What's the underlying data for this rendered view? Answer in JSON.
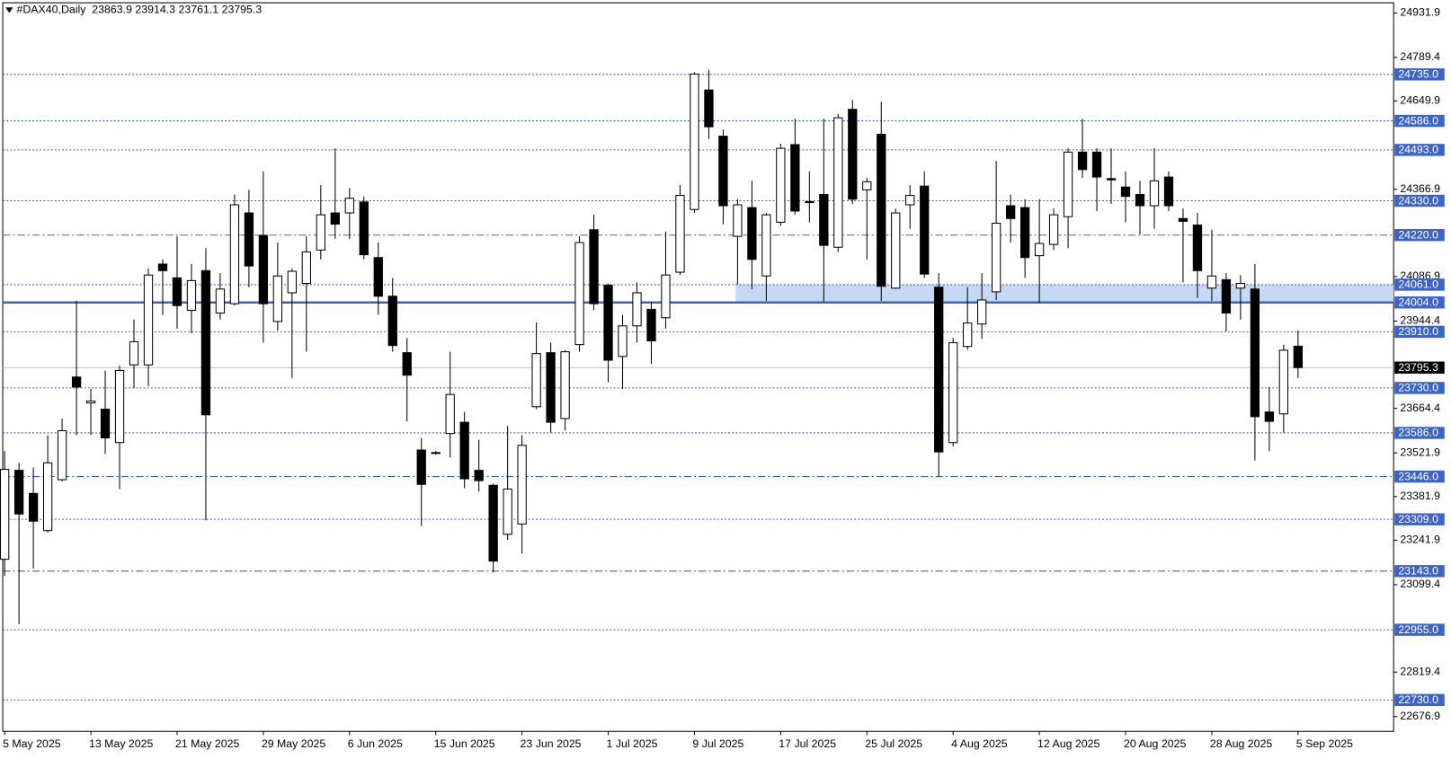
{
  "chart_data": {
    "type": "candlestick",
    "title": "#DAX40,Daily",
    "categories": [
      "5 May 2025",
      null,
      null,
      null,
      null,
      null,
      "13 May 2025",
      null,
      null,
      null,
      null,
      null,
      "21 May 2025",
      null,
      null,
      null,
      null,
      null,
      "29 May 2025",
      null,
      null,
      null,
      null,
      null,
      "6 Jun 2025",
      null,
      null,
      null,
      null,
      null,
      "15 Jun 2025",
      null,
      null,
      null,
      null,
      null,
      "23 Jun 2025",
      null,
      null,
      null,
      null,
      null,
      "1 Jul 2025",
      null,
      null,
      null,
      null,
      null,
      "9 Jul 2025",
      null,
      null,
      null,
      null,
      null,
      "17 Jul 2025",
      null,
      null,
      null,
      null,
      null,
      "25 Jul 2025",
      null,
      null,
      null,
      null,
      null,
      "4 Aug 2025",
      null,
      null,
      null,
      null,
      null,
      "12 Aug 2025",
      null,
      null,
      null,
      null,
      null,
      "20 Aug 2025",
      null,
      null,
      null,
      null,
      null,
      "28 Aug 2025",
      null,
      null,
      null,
      null,
      null,
      "5 Sep 2025"
    ],
    "open": [
      23181,
      23466,
      23392,
      23273,
      23436,
      23765,
      23682,
      23662,
      23555,
      23804,
      23804,
      24127,
      24083,
      23979,
      24106,
      23970,
      24000,
      24291,
      24219,
      23943,
      24035,
      24065,
      24172,
      24291,
      24291,
      24326,
      24148,
      24024,
      23843,
      23531,
      23521,
      23584,
      23620,
      23466,
      23418,
      23261,
      23294,
      23670,
      23843,
      23632,
      23869,
      24237,
      24059,
      23831,
      23929,
      23982,
      23955,
      24101,
      24302,
      24685,
      24537,
      24216,
      24308,
      24089,
      24261,
      24510,
      24325,
      24350,
      24181,
      24623,
      24365,
      24543,
      24050,
      24317,
      24377,
      24053,
      23555,
      23863,
      23935,
      24038,
      24314,
      24308,
      24154,
      24190,
      24279,
      24486,
      24486,
      24401,
      24374,
      24350,
      24314,
      24406,
      24273,
      24252,
      24050,
      24077,
      24050,
      24047,
      23653,
      23647,
      23863.9
    ],
    "high": [
      23528,
      23490,
      23475,
      23579,
      23632,
      24009,
      23727,
      23786,
      23801,
      23949,
      24113,
      24142,
      24216,
      24127,
      24178,
      24098,
      24350,
      24365,
      24424,
      24196,
      24113,
      24216,
      24380,
      24498,
      24371,
      24344,
      24196,
      24083,
      23890,
      23570,
      23528,
      23846,
      23653,
      23564,
      23424,
      23608,
      23579,
      23940,
      23875,
      23851,
      24216,
      24285,
      24065,
      23964,
      24068,
      24006,
      24231,
      24380,
      24742,
      24750,
      24558,
      24335,
      24394,
      24291,
      24513,
      24593,
      24424,
      24593,
      24608,
      24653,
      24403,
      24647,
      24305,
      24380,
      24424,
      24098,
      23890,
      24053,
      24098,
      24457,
      24350,
      24335,
      24335,
      24305,
      24498,
      24593,
      24498,
      24498,
      24424,
      24394,
      24498,
      24424,
      24305,
      24291,
      24237,
      24098,
      24092,
      24127,
      23733,
      23869,
      23914.3
    ],
    "low": [
      23128,
      22973,
      23151,
      23267,
      23430,
      23579,
      23579,
      23519,
      23406,
      23730,
      23736,
      23964,
      23920,
      23905,
      23306,
      23949,
      23994,
      24053,
      23875,
      23914,
      23762,
      23846,
      24142,
      24208,
      24208,
      24142,
      23964,
      23846,
      23623,
      23288,
      23516,
      23507,
      23409,
      23398,
      23139,
      23243,
      23199,
      23662,
      23587,
      23593,
      23846,
      23979,
      23748,
      23727,
      23875,
      23807,
      23920,
      24092,
      24291,
      24528,
      24255,
      24062,
      24047,
      24009,
      24249,
      24285,
      24261,
      24006,
      24166,
      24320,
      24142,
      24009,
      24047,
      24240,
      24083,
      23445,
      23543,
      23852,
      23887,
      24012,
      24196,
      24083,
      24003,
      24172,
      24178,
      24403,
      24297,
      24320,
      24261,
      24222,
      24240,
      24297,
      24068,
      24018,
      24009,
      23911,
      23949,
      23498,
      23528,
      23587,
      23761.1
    ],
    "close": [
      23469,
      23326,
      23303,
      23490,
      23593,
      23733,
      23688,
      23570,
      23786,
      23878,
      24092,
      24106,
      23994,
      24074,
      23644,
      24047,
      24317,
      24121,
      24000,
      24089,
      24104,
      24166,
      24285,
      24255,
      24338,
      24157,
      24024,
      23866,
      23771,
      23421,
      23523,
      23709,
      23439,
      23433,
      23175,
      23406,
      23546,
      23840,
      23620,
      23846,
      24196,
      24000,
      23819,
      23929,
      24035,
      23881,
      24092,
      24347,
      24736,
      24567,
      24314,
      24317,
      24142,
      24285,
      24498,
      24297,
      24327,
      24187,
      24596,
      24335,
      24391,
      24056,
      24291,
      24347,
      24095,
      23525,
      23875,
      23938,
      24012,
      24258,
      24273,
      24148,
      24193,
      24285,
      24486,
      24430,
      24406,
      24397,
      24344,
      24314,
      24394,
      24314,
      24264,
      24106,
      24089,
      23970,
      24065,
      23638,
      23623,
      23851,
      23795.3
    ],
    "ylim": [
      22629.4,
      24964.5
    ],
    "yticks": [
      24931.9,
      24789.4,
      24649.9,
      24366.9,
      24086.9,
      23944.4,
      23664.4,
      23521.9,
      23381.9,
      23241.9,
      23099.4,
      22819.4,
      22676.9
    ],
    "levels": [
      {
        "value": 24735,
        "label": "24735.0",
        "style": "dotted"
      },
      {
        "value": 24586,
        "label": "24586.0",
        "style": "dotted"
      },
      {
        "value": 24493,
        "label": "24493.0",
        "style": "dotted"
      },
      {
        "value": 24330,
        "label": "24330.0",
        "style": "dotted"
      },
      {
        "value": 24220,
        "label": "24220.0",
        "style": "dashdot"
      },
      {
        "value": 24061,
        "label": "24061.0",
        "style": "dotted"
      },
      {
        "value": 24004,
        "label": "24004.0",
        "style": "solid"
      },
      {
        "value": 23910,
        "label": "23910.0",
        "style": "dotted"
      },
      {
        "value": 23730,
        "label": "23730.0",
        "style": "dotted"
      },
      {
        "value": 23586,
        "label": "23586.0",
        "style": "dotted"
      },
      {
        "value": 23446,
        "label": "23446.0",
        "style": "dashdot"
      },
      {
        "value": 23309,
        "label": "23309.0",
        "style": "dotted"
      },
      {
        "value": 23143,
        "label": "23143.0",
        "style": "dashdot"
      },
      {
        "value": 22955,
        "label": "22955.0",
        "style": "dotted"
      },
      {
        "value": 22730,
        "label": "22730.0",
        "style": "dotted"
      }
    ],
    "zone": [
      24004,
      24061
    ],
    "level_color": "#3a63cc",
    "zone_color": "#c5d9f5",
    "up_color": "#ffffff",
    "down_color": "#000000"
  }
}
